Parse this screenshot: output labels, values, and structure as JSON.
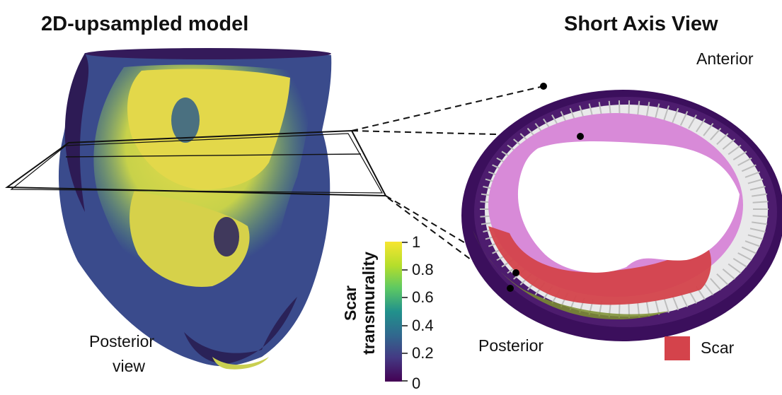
{
  "titles": {
    "left": "2D-upsampled model",
    "right": "Short Axis View"
  },
  "labels": {
    "anterior": "Anterior",
    "posterior_right": "Posterior",
    "posterior_view_line1": "Posterior",
    "posterior_view_line2": "view",
    "scar_legend": "Scar"
  },
  "colorbar": {
    "title_line1": "Scar",
    "title_line2": "transmurality",
    "ticks": [
      "1",
      "0.8",
      "0.6",
      "0.4",
      "0.2",
      "0"
    ],
    "colors": [
      "#f7e531",
      "#8fd744",
      "#35b779",
      "#21908d",
      "#31688e",
      "#443a83",
      "#440154"
    ]
  },
  "colors": {
    "scar": "#d4434b",
    "endocardium": "#d88ad8",
    "epicardium_dark": "#3b0f5c"
  }
}
